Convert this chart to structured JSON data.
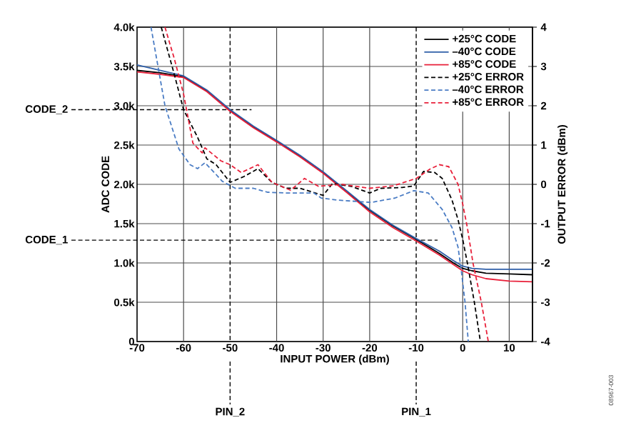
{
  "chart_data": {
    "type": "line",
    "xlabel": "INPUT POWER (dBm)",
    "ylabel": "ADC CODE",
    "y2label": "OUTPUT ERROR (dBm)",
    "x": [
      -70,
      -65,
      -60,
      -55,
      -50,
      -45,
      -40,
      -35,
      -30,
      -25,
      -20,
      -15,
      -10,
      -5,
      -2,
      0,
      2,
      5,
      10,
      15
    ],
    "series": [
      {
        "name": "+25°C CODE",
        "color": "#000000",
        "line_style": "solid",
        "values": [
          3450,
          3420,
          3370,
          3190,
          2940,
          2730,
          2550,
          2360,
          2150,
          1910,
          1670,
          1470,
          1300,
          1120,
          1000,
          930,
          900,
          870,
          860,
          850
        ]
      },
      {
        "name": "–40°C CODE",
        "color": "#2f5fa8",
        "line_style": "solid",
        "values": [
          3520,
          3450,
          3380,
          3200,
          2950,
          2740,
          2560,
          2370,
          2160,
          1920,
          1680,
          1480,
          1310,
          1150,
          1030,
          960,
          930,
          920,
          920,
          920
        ]
      },
      {
        "name": "+85°C CODE",
        "color": "#e8203a",
        "line_style": "solid",
        "values": [
          3430,
          3400,
          3360,
          3180,
          2930,
          2720,
          2540,
          2350,
          2140,
          1900,
          1650,
          1450,
          1280,
          1100,
          980,
          900,
          850,
          800,
          770,
          760
        ]
      },
      {
        "name": "+25°C ERROR",
        "color": "#000000",
        "line_style": "dashed",
        "axis": "y2",
        "x": [
          -64.8,
          -62,
          -60,
          -57,
          -55,
          -53,
          -50,
          -47,
          -44,
          -41,
          -38,
          -35,
          -30,
          -28,
          -24,
          -20,
          -17.6,
          -13,
          -10.5,
          -8.4,
          -6,
          -4.4,
          -2.3,
          -1,
          0,
          1,
          2.5,
          3.8
        ],
        "values": [
          4,
          2.8,
          1.9,
          1.2,
          0.65,
          0.5,
          0.05,
          0.2,
          0.4,
          0.05,
          -0.1,
          -0.1,
          -0.28,
          0.02,
          -0.05,
          -0.22,
          -0.1,
          -0.08,
          -0.04,
          0.33,
          0.3,
          0.15,
          -0.4,
          -0.9,
          -1.4,
          -2.0,
          -3.0,
          -4
        ]
      },
      {
        "name": "–40°C ERROR",
        "color": "#4a7cc4",
        "line_style": "dashed",
        "axis": "y2",
        "x": [
          -67,
          -64,
          -61,
          -58.6,
          -57,
          -55.4,
          -53,
          -51.7,
          -48.9,
          -45,
          -42,
          -38,
          -32,
          -30.4,
          -27,
          -19.7,
          -14.6,
          -10.5,
          -7.4,
          -4.4,
          -2.3,
          -1,
          -0.3,
          0.5,
          1.2
        ],
        "values": [
          4,
          2.0,
          0.9,
          0.5,
          0.4,
          0.55,
          0.25,
          0.08,
          -0.1,
          -0.1,
          -0.2,
          -0.22,
          -0.22,
          -0.35,
          -0.4,
          -0.46,
          -0.35,
          -0.16,
          -0.22,
          -0.64,
          -1.1,
          -1.6,
          -2.2,
          -3.0,
          -4
        ]
      },
      {
        "name": "+85°C ERROR",
        "color": "#e8203a",
        "line_style": "dashed",
        "axis": "y2",
        "x": [
          -64,
          -62,
          -60,
          -58,
          -56,
          -55.4,
          -52,
          -50,
          -47.6,
          -44,
          -41,
          -37,
          -34,
          -31,
          -26,
          -20,
          -15,
          -10,
          -7,
          -5,
          -3,
          -1,
          0,
          1,
          2.2,
          4,
          5.5
        ],
        "values": [
          4,
          3.2,
          2.3,
          1.05,
          0.8,
          0.93,
          0.6,
          0.5,
          0.3,
          0.5,
          0.05,
          -0.15,
          0.15,
          -0.05,
          0.0,
          -0.1,
          -0.04,
          0.15,
          0.39,
          0.5,
          0.45,
          0.0,
          -0.5,
          -1.1,
          -2.0,
          -3.0,
          -4
        ]
      }
    ],
    "xlim": [
      -70,
      15
    ],
    "xticks": [
      -70,
      -60,
      -50,
      -40,
      -30,
      -20,
      -10,
      0,
      10
    ],
    "ylim": [
      0,
      4000
    ],
    "yticks": [
      0,
      {
        "value": 500,
        "label": "0.5k"
      },
      {
        "value": 1000,
        "label": "1.0k"
      },
      {
        "value": 1500,
        "label": "1.5k"
      },
      {
        "value": 2000,
        "label": "2.0k"
      },
      {
        "value": 2500,
        "label": "2.5k"
      },
      {
        "value": 3000,
        "label": "3.0k"
      },
      {
        "value": 3500,
        "label": "3.5k"
      },
      {
        "value": 4000,
        "label": "4.0k"
      }
    ],
    "y2lim": [
      -4,
      4
    ],
    "y2ticks": [
      -4,
      -3,
      -2,
      -1,
      0,
      1,
      2,
      3,
      4
    ],
    "ref_lines": [
      {
        "axis": "y",
        "value": 2950,
        "label": "CODE_2",
        "line_style": "dashed"
      },
      {
        "axis": "y",
        "value": 1290,
        "label": "CODE_1",
        "line_style": "dashed"
      },
      {
        "axis": "x",
        "value": -50,
        "label": "PIN_2",
        "line_style": "dashed"
      },
      {
        "axis": "x",
        "value": -10,
        "label": "PIN_1",
        "line_style": "dashed"
      }
    ],
    "grid": true,
    "legend": "top right",
    "annotations": [
      "08967-003"
    ]
  }
}
